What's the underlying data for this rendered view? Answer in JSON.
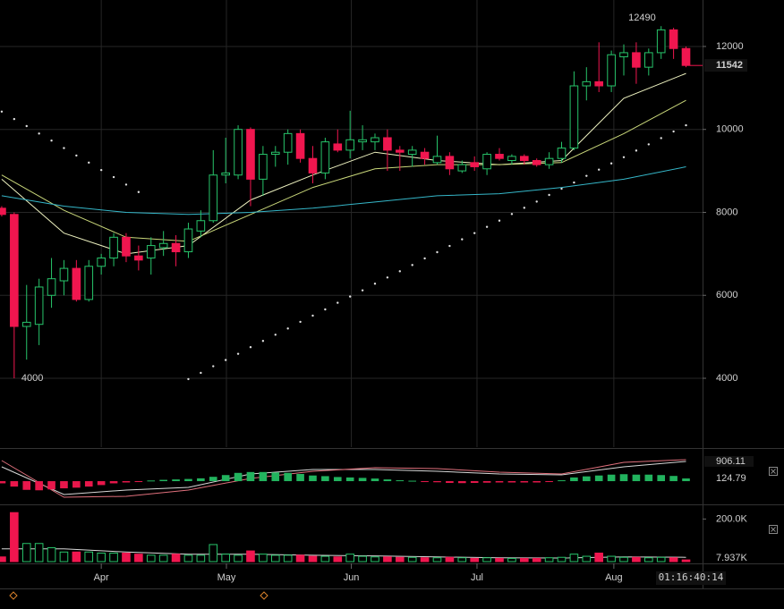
{
  "chart_data": [
    {
      "type": "candlestick",
      "categories": [
        null,
        null,
        null,
        null,
        null,
        null,
        null,
        null,
        null,
        null,
        null,
        null,
        null,
        null,
        null,
        null,
        null,
        null,
        null,
        null,
        null,
        null,
        null,
        null,
        null,
        null,
        null,
        null,
        null,
        null,
        null,
        null,
        null,
        null,
        null,
        null,
        null,
        null,
        null,
        null,
        null,
        null,
        null,
        null,
        null,
        null,
        null,
        null,
        null,
        null,
        null,
        null,
        null,
        null,
        null,
        null
      ],
      "open": [
        8100,
        7950,
        5250,
        5300,
        6000,
        6350,
        6650,
        5900,
        6700,
        6900,
        7400,
        6950,
        6900,
        7150,
        7250,
        7050,
        7550,
        7800,
        8900,
        8900,
        10000,
        8800,
        9400,
        9450,
        9900,
        9300,
        8950,
        9650,
        9500,
        9700,
        9700,
        9800,
        9500,
        9400,
        9450,
        9200,
        9350,
        9000,
        9200,
        9050,
        9400,
        9250,
        9350,
        9250,
        9150,
        9300,
        9550,
        11050,
        11150,
        11050,
        11750,
        11850,
        11500,
        11850,
        12400,
        11950
      ],
      "high": [
        8150,
        8000,
        6250,
        6400,
        6900,
        6850,
        6850,
        6850,
        7000,
        7500,
        7500,
        7200,
        7400,
        7550,
        7450,
        7750,
        8050,
        9500,
        9800,
        10100,
        10050,
        9600,
        9600,
        10000,
        10000,
        9600,
        9800,
        10000,
        10450,
        10100,
        9900,
        10000,
        9600,
        9600,
        9550,
        9850,
        9450,
        9250,
        9350,
        9450,
        9550,
        9400,
        9400,
        9300,
        9450,
        9700,
        11400,
        11500,
        12100,
        11900,
        12050,
        12100,
        11950,
        12490,
        12450,
        12000
      ],
      "low": [
        7900,
        4000,
        4450,
        4800,
        5700,
        6000,
        5850,
        5850,
        6500,
        6700,
        6800,
        6600,
        6500,
        6950,
        6700,
        6900,
        7400,
        7750,
        8700,
        8800,
        8150,
        8400,
        9100,
        9150,
        9200,
        8700,
        8800,
        9450,
        9300,
        9500,
        9500,
        9000,
        9000,
        9100,
        9150,
        9150,
        8900,
        8950,
        9000,
        8900,
        9250,
        9150,
        9150,
        9100,
        9050,
        9200,
        9500,
        10700,
        10900,
        10900,
        11300,
        11100,
        11300,
        11700,
        11700,
        11500
      ],
      "close": [
        7950,
        5250,
        5350,
        6200,
        6400,
        6650,
        5900,
        6700,
        6900,
        7400,
        6950,
        6850,
        7200,
        7250,
        7050,
        7600,
        7800,
        8900,
        8950,
        10000,
        8800,
        9400,
        9450,
        9900,
        9300,
        8950,
        9700,
        9500,
        9750,
        9750,
        9800,
        9500,
        9450,
        9500,
        9300,
        9350,
        9050,
        9150,
        9100,
        9400,
        9300,
        9350,
        9250,
        9150,
        9300,
        9550,
        11050,
        11150,
        11050,
        11800,
        11850,
        11500,
        11850,
        12400,
        11950,
        11542
      ],
      "up_color": "#27c46a",
      "down_color": "#f0164f",
      "xlim": [
        -0.14,
        56.33
      ],
      "xticks": [
        {
          "value": 8,
          "label": "Apr"
        },
        {
          "value": 18.06,
          "label": "May"
        },
        {
          "value": 28.1,
          "label": "Jun"
        },
        {
          "value": 38.2,
          "label": "Jul"
        },
        {
          "value": 49.2,
          "label": "Aug"
        }
      ],
      "ylim": [
        2340,
        13120
      ],
      "yticks": [
        4000,
        6000,
        8000,
        10000,
        12000
      ],
      "grid": true,
      "lines": [
        {
          "color": "#eef2c0",
          "x": [
            0,
            5,
            10,
            15,
            20,
            25,
            30,
            35,
            40,
            45,
            50,
            55
          ],
          "values": [
            8800,
            7500,
            7000,
            7200,
            8300,
            8900,
            9450,
            9250,
            9150,
            9250,
            10750,
            11350
          ]
        },
        {
          "color": "#c9d77a",
          "x": [
            0,
            5,
            10,
            15,
            20,
            25,
            30,
            35,
            40,
            45,
            50,
            55
          ],
          "values": [
            8900,
            8050,
            7400,
            7300,
            7950,
            8600,
            9050,
            9150,
            9150,
            9200,
            9900,
            10700
          ]
        },
        {
          "color": "#35b7c9",
          "x": [
            0,
            5,
            10,
            15,
            20,
            25,
            30,
            35,
            40,
            45,
            50,
            55
          ],
          "values": [
            8400,
            8150,
            8000,
            7950,
            8000,
            8100,
            8250,
            8400,
            8450,
            8600,
            8800,
            9100
          ]
        }
      ],
      "sar": {
        "color": "#e0e0e0",
        "values": [
          10430,
          10250,
          10080,
          9900,
          9730,
          9550,
          9370,
          9200,
          9020,
          8850,
          8670,
          8490,
          null,
          null,
          null,
          3980,
          4130,
          4290,
          4440,
          4590,
          4750,
          4900,
          5050,
          5200,
          5360,
          5510,
          5660,
          5820,
          5970,
          6120,
          6280,
          6430,
          6580,
          6730,
          6890,
          7040,
          7190,
          7350,
          7500,
          7650,
          7800,
          7960,
          8110,
          8260,
          8420,
          8570,
          8720,
          8880,
          9030,
          9180,
          9330,
          9490,
          9640,
          9790,
          9950,
          10100
        ]
      },
      "countdown": "01:16:40:14"
    },
    {
      "type": "histogram",
      "values": [
        -100,
        -250,
        -400,
        -420,
        -380,
        -330,
        -300,
        -250,
        -180,
        -100,
        -60,
        -40,
        30,
        60,
        80,
        100,
        130,
        200,
        280,
        380,
        420,
        420,
        400,
        380,
        330,
        260,
        230,
        190,
        170,
        150,
        120,
        80,
        40,
        20,
        -30,
        -50,
        -80,
        -90,
        -80,
        -70,
        -60,
        -60,
        -60,
        -60,
        -40,
        40,
        170,
        220,
        260,
        300,
        320,
        300,
        300,
        280,
        240,
        124.79
      ],
      "up_color": "#22b35e",
      "down_color": "#e8174b",
      "ylim": [
        -985,
        1358
      ],
      "lines": [
        {
          "color": "#d8d8d8",
          "x": [
            0,
            5,
            10,
            15,
            20,
            25,
            30,
            35,
            40,
            45,
            50,
            55
          ],
          "values": [
            658,
            -617,
            -411,
            -288,
            329,
            534,
            534,
            452,
            329,
            288,
            658,
            906.11
          ]
        },
        {
          "color": "#e0707c",
          "x": [
            0,
            5,
            10,
            15,
            20,
            25,
            30,
            35,
            40,
            45,
            50,
            55
          ],
          "values": [
            945,
            -740,
            -699,
            -411,
            123,
            452,
            617,
            575,
            411,
            329,
            863,
            986
          ]
        }
      ]
    },
    {
      "type": "volume",
      "values": [
        22000,
        230000,
        85000,
        85000,
        65000,
        45000,
        45000,
        45000,
        40000,
        40000,
        40000,
        35000,
        30000,
        30000,
        35000,
        30000,
        30000,
        80000,
        35000,
        30000,
        50000,
        35000,
        30000,
        30000,
        30000,
        25000,
        25000,
        22000,
        35000,
        25000,
        22000,
        22000,
        20000,
        20000,
        18000,
        18000,
        20000,
        18000,
        15000,
        18000,
        15000,
        15000,
        15000,
        15000,
        18000,
        20000,
        35000,
        25000,
        40000,
        25000,
        20000,
        20000,
        18000,
        20000,
        18000,
        7937
      ],
      "value_labels": [
        null,
        null,
        null,
        null,
        null,
        null,
        null,
        null,
        null,
        null,
        null,
        null,
        null,
        null,
        null,
        null,
        null,
        null,
        null,
        null,
        null,
        null,
        null,
        null,
        null,
        null,
        null,
        null,
        null,
        null,
        null,
        null,
        null,
        null,
        null,
        null,
        null,
        null,
        null,
        null,
        null,
        null,
        null,
        null,
        null,
        null,
        null,
        null,
        null,
        null,
        null,
        null,
        null,
        null,
        null,
        "7.937K"
      ],
      "up_color": "#27c46a",
      "down_color": "#f0164f",
      "ylim": [
        0,
        243500
      ],
      "yticks": [
        {
          "value": 200000,
          "label": "200.0K"
        }
      ],
      "lines": [
        {
          "color": "#d8d8d8",
          "x": [
            0,
            5,
            10,
            15,
            20,
            25,
            30,
            35,
            40,
            45,
            50,
            55
          ],
          "values": [
            60000,
            60000,
            45000,
            35000,
            35000,
            30000,
            27000,
            22000,
            18000,
            17000,
            22000,
            20000
          ]
        }
      ]
    }
  ]
}
